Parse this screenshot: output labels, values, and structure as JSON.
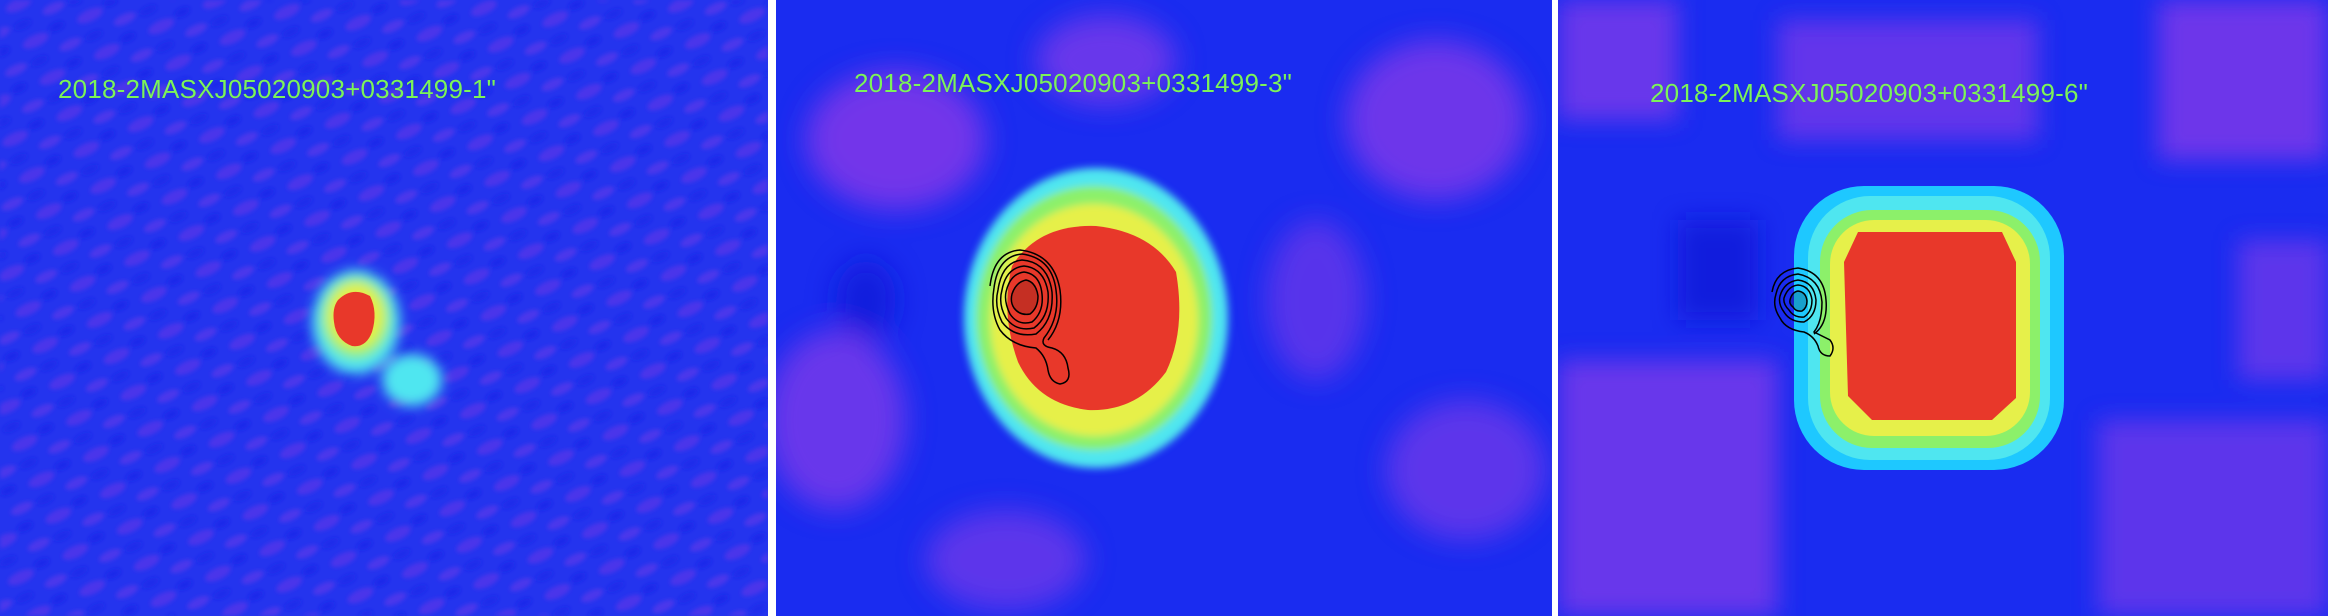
{
  "panels": [
    {
      "label": "2018-2MASXJ05020903+0331499-1\"",
      "pixelation": "fine",
      "contours": false
    },
    {
      "label": "2018-2MASXJ05020903+0331499-3\"",
      "pixelation": "medium",
      "contours": true
    },
    {
      "label": "2018-2MASXJ05020903+0331499-6\"",
      "pixelation": "coarse",
      "contours": true
    }
  ],
  "colors": {
    "background_blue": "#1a2cf0",
    "noise_purple": "#8a3ae8",
    "halo_cyan": "#4fe6f0",
    "halo_green": "#8cf06a",
    "halo_yellow": "#e6f04a",
    "core_red": "#e8382a",
    "contour_black": "#000000",
    "label_green": "#7cf35a"
  }
}
